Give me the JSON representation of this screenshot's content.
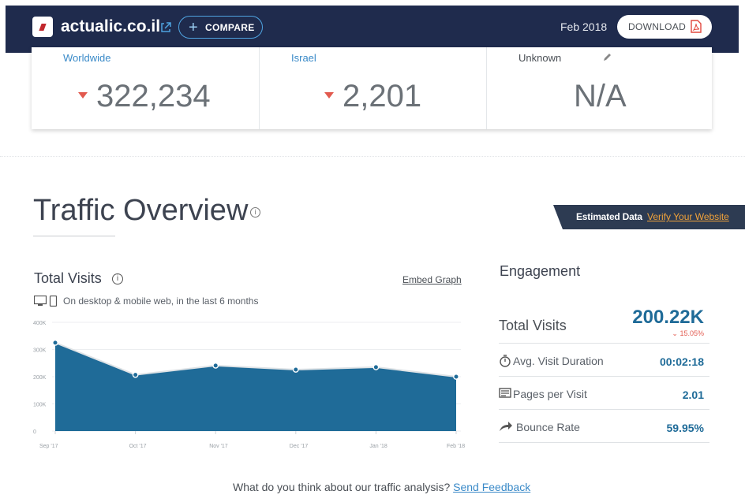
{
  "header": {
    "site_name": "actualic.co.il",
    "compare_label": "COMPARE",
    "date": "Feb 2018",
    "download_label": "DOWNLOAD",
    "colors": {
      "bar_bg": "#1f2b4d",
      "accent": "#4fa3e0",
      "pdf": "#e0483e"
    }
  },
  "ranks": {
    "worldwide": {
      "label": "Worldwide",
      "value": "322,234",
      "trend": "down"
    },
    "country": {
      "label": "Israel",
      "value": "2,201",
      "trend": "down"
    },
    "category": {
      "label": "Unknown",
      "value": "N/A"
    }
  },
  "traffic_overview": {
    "title": "Traffic Overview",
    "estimated_label": "Estimated Data",
    "verify_label": "Verify Your Website"
  },
  "total_visits_chart": {
    "title": "Total Visits",
    "embed_label": "Embed Graph",
    "subtitle": "On desktop & mobile web, in the last 6 months"
  },
  "chart_data": {
    "type": "area",
    "title": "Total Visits",
    "categories": [
      "Sep '17",
      "Oct '17",
      "Nov '17",
      "Dec '17",
      "Jan '18",
      "Feb '18"
    ],
    "values": [
      325000,
      207000,
      241000,
      226000,
      235000,
      200000
    ],
    "y_ticks": [
      "0",
      "100K",
      "200K",
      "300K",
      "400K"
    ],
    "ylim": [
      0,
      400000
    ],
    "grid": true,
    "color": "#1f6b98"
  },
  "engagement": {
    "title": "Engagement",
    "total_visits": {
      "label": "Total Visits",
      "value": "200.22K",
      "change": "15.05%",
      "trend": "down"
    },
    "avg_duration": {
      "label": "Avg. Visit Duration",
      "value": "00:02:18"
    },
    "pages_per_visit": {
      "label": "Pages per Visit",
      "value": "2.01"
    },
    "bounce_rate": {
      "label": "Bounce Rate",
      "value": "59.95%"
    }
  },
  "feedback": {
    "question": "What do you think about our traffic analysis?",
    "link_label": "Send Feedback"
  }
}
